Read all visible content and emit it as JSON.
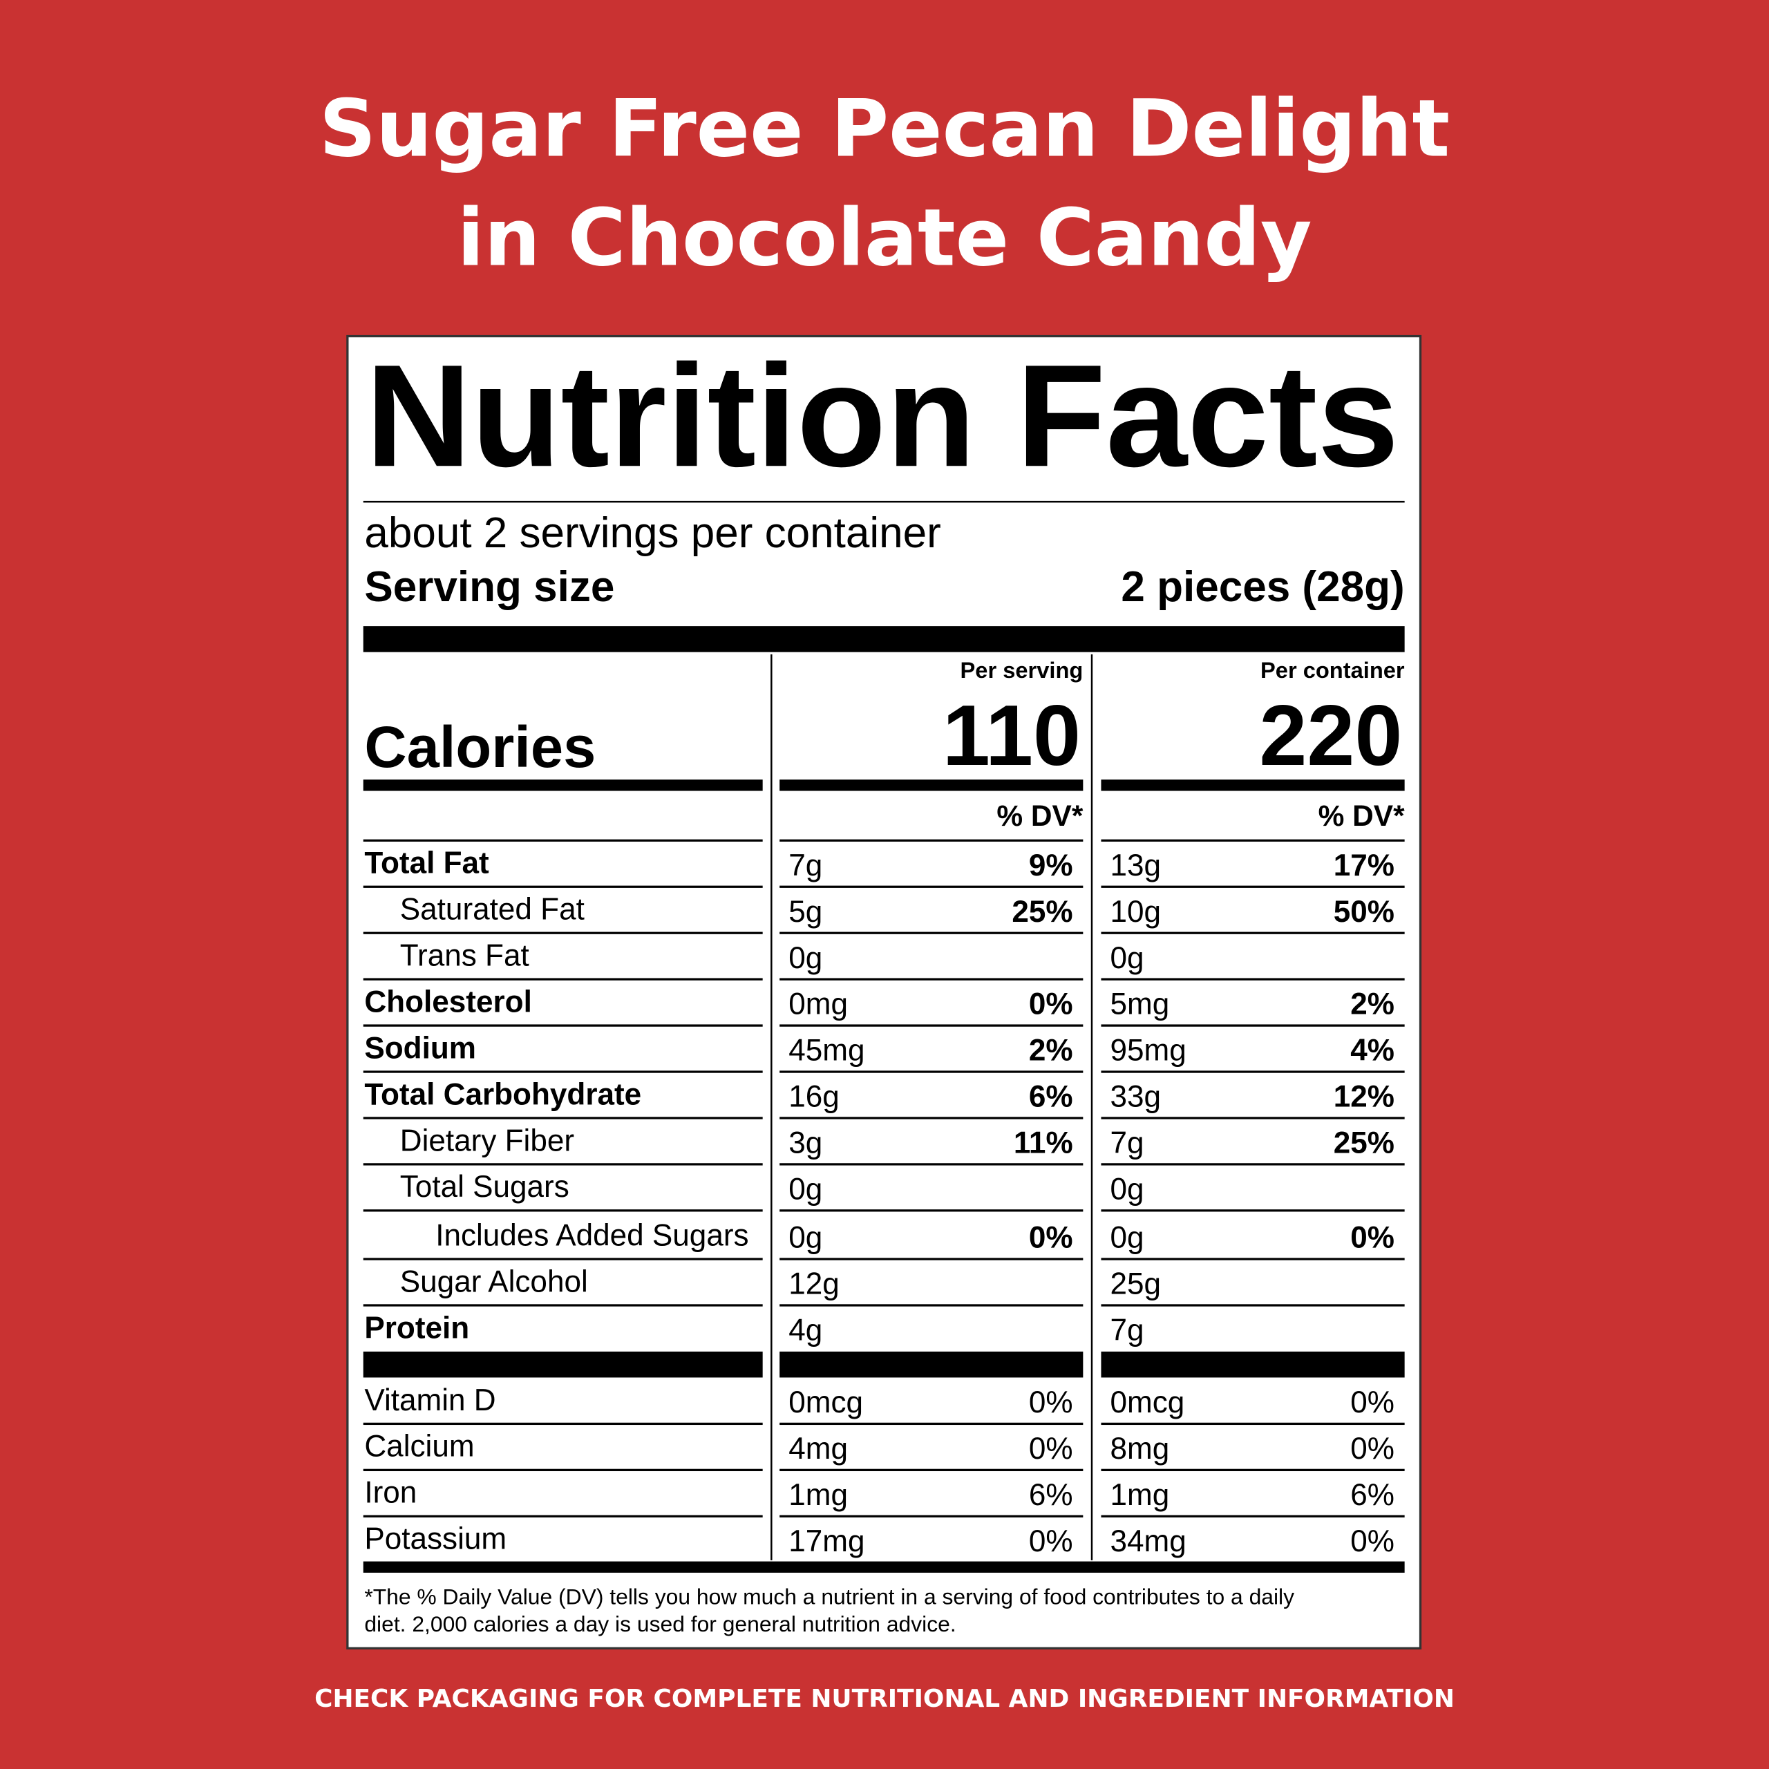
{
  "header": {
    "title_lines": [
      "Sugar Free Pecan Delight",
      "in Chocolate Candy"
    ]
  },
  "label": {
    "heading": "Nutrition Facts",
    "servings": "about 2 servings per container",
    "serving_size_label": "Serving size",
    "serving_size": "2 pieces (28g)",
    "calories_label": "Calories",
    "columns": [
      {
        "heading": "Per serving",
        "calories": "110",
        "dv_heading": "% DV*"
      },
      {
        "heading": "Per container",
        "calories": "220",
        "dv_heading": "% DV*"
      }
    ],
    "nutrients": [
      {
        "name": "Total Fat",
        "bold": true,
        "indent": 0,
        "values": [
          {
            "amount": "7g",
            "dv": "9%"
          },
          {
            "amount": "13g",
            "dv": "17%"
          }
        ]
      },
      {
        "name": "Saturated Fat",
        "bold": false,
        "indent": 1,
        "values": [
          {
            "amount": "5g",
            "dv": "25%"
          },
          {
            "amount": "10g",
            "dv": "50%"
          }
        ]
      },
      {
        "name": "Trans Fat",
        "bold": false,
        "indent": 1,
        "values": [
          {
            "amount": "0g"
          },
          {
            "amount": "0g"
          }
        ]
      },
      {
        "name": "Cholesterol",
        "bold": true,
        "indent": 0,
        "values": [
          {
            "amount": "0mg",
            "dv": "0%"
          },
          {
            "amount": "5mg",
            "dv": "2%"
          }
        ]
      },
      {
        "name": "Sodium",
        "bold": true,
        "indent": 0,
        "values": [
          {
            "amount": "45mg",
            "dv": "2%"
          },
          {
            "amount": "95mg",
            "dv": "4%"
          }
        ]
      },
      {
        "name": "Total Carbohydrate",
        "bold": true,
        "indent": 0,
        "values": [
          {
            "amount": "16g",
            "dv": "6%"
          },
          {
            "amount": "33g",
            "dv": "12%"
          }
        ]
      },
      {
        "name": "Dietary Fiber",
        "bold": false,
        "indent": 1,
        "values": [
          {
            "amount": "3g",
            "dv": "11%"
          },
          {
            "amount": "7g",
            "dv": "25%"
          }
        ]
      },
      {
        "name": "Total Sugars",
        "bold": false,
        "indent": 1,
        "values": [
          {
            "amount": "0g"
          },
          {
            "amount": "0g"
          }
        ]
      },
      {
        "name": "Includes Added Sugars",
        "bold": false,
        "indent": 2,
        "values": [
          {
            "amount": "0g",
            "dv": "0%"
          },
          {
            "amount": "0g",
            "dv": "0%"
          }
        ]
      },
      {
        "name": "Sugar Alcohol",
        "bold": false,
        "indent": 1,
        "values": [
          {
            "amount": "12g"
          },
          {
            "amount": "25g"
          }
        ]
      },
      {
        "name": "Protein",
        "bold": true,
        "indent": 0,
        "values": [
          {
            "amount": "4g"
          },
          {
            "amount": "7g"
          }
        ]
      }
    ],
    "vitamins": [
      {
        "name": "Vitamin D",
        "values": [
          {
            "amount": "0mcg",
            "dv": "0%"
          },
          {
            "amount": "0mcg",
            "dv": "0%"
          }
        ]
      },
      {
        "name": "Calcium",
        "values": [
          {
            "amount": "4mg",
            "dv": "0%"
          },
          {
            "amount": "8mg",
            "dv": "0%"
          }
        ]
      },
      {
        "name": "Iron",
        "values": [
          {
            "amount": "1mg",
            "dv": "6%"
          },
          {
            "amount": "1mg",
            "dv": "6%"
          }
        ]
      },
      {
        "name": "Potassium",
        "values": [
          {
            "amount": "17mg",
            "dv": "0%"
          },
          {
            "amount": "34mg",
            "dv": "0%"
          }
        ]
      }
    ],
    "footnote_lines": [
      "*The % Daily Value (DV) tells you how much a nutrient in a serving of food contributes to a daily",
      "diet. 2,000 calories a day is used for general nutrition advice."
    ]
  },
  "footer": "CHECK PACKAGING FOR COMPLETE NUTRITIONAL AND INGREDIENT INFORMATION"
}
